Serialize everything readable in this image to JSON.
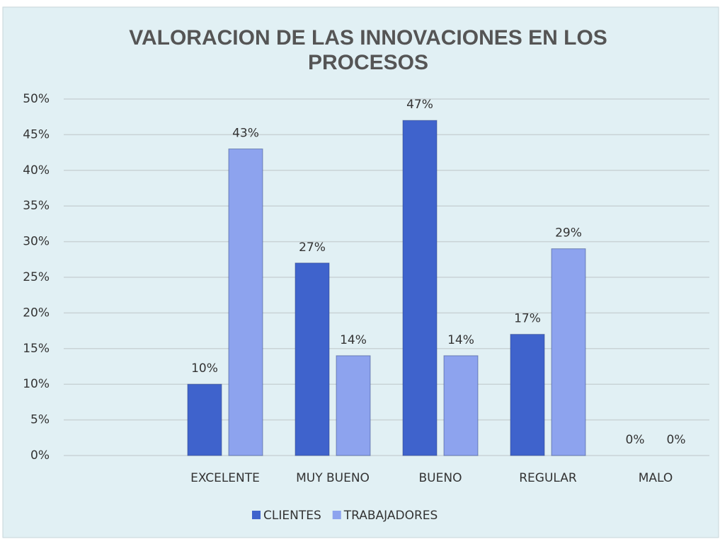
{
  "chart_data": {
    "type": "bar",
    "title": "VALORACION DE LAS INNOVACIONES EN LOS",
    "title_line2": "PROCESOS",
    "categories": [
      null,
      "EXCELENTE",
      "MUY BUENO",
      "BUENO",
      "REGULAR",
      "MALO"
    ],
    "series": [
      {
        "name": "CLIENTES",
        "color": "#3f63cc",
        "values": [
          null,
          10,
          27,
          47,
          17,
          0
        ],
        "value_labels": [
          null,
          "10%",
          "27%",
          "47%",
          "17%",
          "0%"
        ]
      },
      {
        "name": "TRABAJADORES",
        "color": "#8da3ee",
        "values": [
          null,
          43,
          14,
          14,
          29,
          0
        ],
        "value_labels": [
          null,
          "43%",
          "14%",
          "14%",
          "29%",
          "0%"
        ]
      }
    ],
    "ylim": [
      0,
      50
    ],
    "yticks": [
      {
        "value": 0,
        "label": "0%"
      },
      {
        "value": 5,
        "label": "5%"
      },
      {
        "value": 10,
        "label": "10%"
      },
      {
        "value": 15,
        "label": "15%"
      },
      {
        "value": 20,
        "label": "20%"
      },
      {
        "value": 25,
        "label": "25%"
      },
      {
        "value": 30,
        "label": "30%"
      },
      {
        "value": 35,
        "label": "35%"
      },
      {
        "value": 40,
        "label": "40%"
      },
      {
        "value": 45,
        "label": "45%"
      },
      {
        "value": 50,
        "label": "50%"
      }
    ],
    "grid": true,
    "legend": "bottom"
  }
}
